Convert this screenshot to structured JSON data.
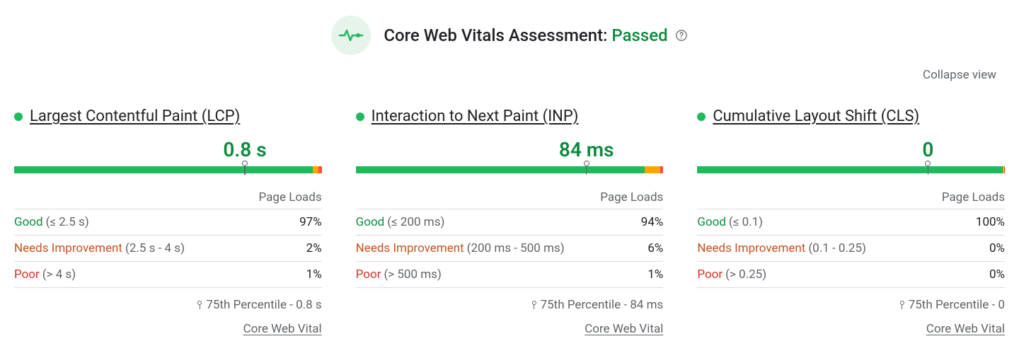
{
  "colors": {
    "good": "#0d8a3e",
    "good_bar": "#1eba5c",
    "needs_improvement": "#c5521f",
    "ni_bar": "#ffa400",
    "poor": "#d93025",
    "poor_bar": "#ff4e42",
    "text_muted": "#5f6368",
    "header_status": "#0d8a3e"
  },
  "header": {
    "title_prefix": "Core Web Vitals Assessment:",
    "status": "Passed"
  },
  "collapse_label": "Collapse view",
  "common": {
    "page_loads_label": "Page Loads",
    "percentile_prefix": "75th Percentile -",
    "cwv_link_label": "Core Web Vital",
    "good_label": "Good",
    "ni_label": "Needs Improvement",
    "poor_label": "Poor"
  },
  "metrics": [
    {
      "key": "lcp",
      "title": "Largest Contentful Paint (LCP)",
      "value_display": "0.8 s",
      "marker_percent": 75,
      "distribution": {
        "good": {
          "range": "(≤ 2.5 s)",
          "pct": "97%",
          "bar_pct": 97
        },
        "ni": {
          "range": "(2.5 s - 4 s)",
          "pct": "2%",
          "bar_pct": 2
        },
        "poor": {
          "range": "(> 4 s)",
          "pct": "1%",
          "bar_pct": 1
        }
      },
      "percentile_value": "0.8 s"
    },
    {
      "key": "inp",
      "title": "Interaction to Next Paint (INP)",
      "value_display": "84 ms",
      "marker_percent": 75,
      "distribution": {
        "good": {
          "range": "(≤ 200 ms)",
          "pct": "94%",
          "bar_pct": 94
        },
        "ni": {
          "range": "(200 ms - 500 ms)",
          "pct": "6%",
          "bar_pct": 5
        },
        "poor": {
          "range": "(> 500 ms)",
          "pct": "1%",
          "bar_pct": 1
        }
      },
      "percentile_value": "84 ms"
    },
    {
      "key": "cls",
      "title": "Cumulative Layout Shift (CLS)",
      "value_display": "0",
      "marker_percent": 75,
      "distribution": {
        "good": {
          "range": "(≤ 0.1)",
          "pct": "100%",
          "bar_pct": 99.4
        },
        "ni": {
          "range": "(0.1 - 0.25)",
          "pct": "0%",
          "bar_pct": 0.3
        },
        "poor": {
          "range": "(> 0.25)",
          "pct": "0%",
          "bar_pct": 0.3
        }
      },
      "percentile_value": "0"
    }
  ]
}
